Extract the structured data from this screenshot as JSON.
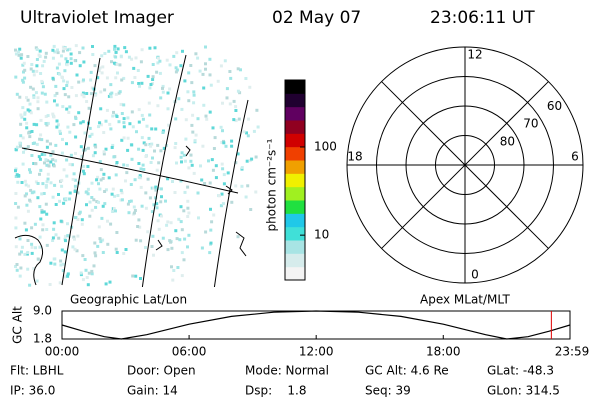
{
  "header": {
    "title": "Ultraviolet Imager",
    "date": "02 May 07",
    "time": "23:06:11 UT"
  },
  "map": {
    "caption": "Geographic Lat/Lon"
  },
  "colorbar": {
    "label": "photon cm⁻²s⁻¹",
    "log": true,
    "lim": [
      3.1,
      575
    ],
    "ticks": [
      10,
      100
    ],
    "colors": [
      "#f4f4f4",
      "#d6ecec",
      "#a8e4e4",
      "#40e0d8",
      "#20c8e8",
      "#20e040",
      "#a0f020",
      "#f0f000",
      "#f0a000",
      "#f04000",
      "#d00000",
      "#900020",
      "#600060",
      "#200030",
      "#000000"
    ]
  },
  "polar": {
    "caption": "Apex MLat/MLT",
    "rlim": [
      90,
      50
    ],
    "lat_circles": [
      80,
      70,
      60
    ],
    "mlt_labels": [
      12,
      6,
      18,
      0
    ]
  },
  "timeline": {
    "ylabel": "GC Alt",
    "ylim": [
      1.8,
      9
    ],
    "yticks": [
      {
        "value": 9,
        "label": "9.0"
      },
      1.8
    ],
    "xlim": [
      0,
      23.983
    ],
    "xticks": [
      {
        "value": 0,
        "label": "00:00"
      },
      {
        "value": 6,
        "label": "06:00"
      },
      {
        "value": 12,
        "label": "12:00"
      },
      {
        "value": 18,
        "label": "18:00"
      },
      {
        "value": 23.983,
        "label": "23:59"
      }
    ],
    "x": [
      0,
      1,
      2,
      2.8,
      4,
      6,
      8,
      10,
      12,
      14,
      16,
      18,
      20,
      21,
      22,
      23,
      23.983
    ],
    "values": [
      5.4,
      3.8,
      2.4,
      1.8,
      2.9,
      5.6,
      7.6,
      8.7,
      9.0,
      8.7,
      7.6,
      5.6,
      2.9,
      1.8,
      2.4,
      3.8,
      5.4
    ],
    "color": "#000000",
    "current_time": 23.103,
    "marker_color": "#e00000"
  },
  "info": {
    "rows": [
      [
        "Flt: LBHL",
        "Door: Open",
        "Mode: Normal",
        "GC Alt: 4.6 Re",
        "GLat: -48.3"
      ],
      [
        "IP: 36.0",
        "Gain: 14",
        "Dsp:    1.8",
        "Seq: 39",
        "GLon: 314.5"
      ]
    ]
  }
}
